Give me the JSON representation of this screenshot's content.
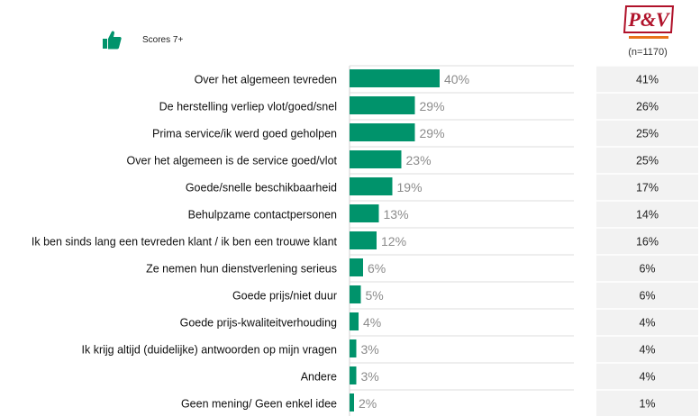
{
  "legend": {
    "label": "Scores 7+",
    "icon": "thumbs-up-icon"
  },
  "logo": {
    "text": "P&V"
  },
  "sample": {
    "label": "(n=1170)"
  },
  "colors": {
    "bar": "#00936b",
    "side_panel": "#f2f2f2",
    "logo_red": "#b0122a",
    "logo_orange": "#e8731a"
  },
  "chart_data": {
    "type": "bar",
    "orientation": "horizontal",
    "categories": [
      "Over het algemeen tevreden",
      "De herstelling verliep vlot/goed/snel",
      "Prima service/ik werd goed geholpen",
      "Over het algemeen is de service goed/vlot",
      "Goede/snelle beschikbaarheid",
      "Behulpzame contactpersonen",
      "Ik ben sinds lang een tevreden klant / ik ben een trouwe klant",
      "Ze nemen hun dienstverlening serieus",
      "Goede prijs/niet duur",
      "Goede prijs-kwaliteitverhouding",
      "Ik krijg altijd (duidelijke) antwoorden op mijn vragen",
      "Andere",
      "Geen mening/ Geen enkel idee"
    ],
    "series": [
      {
        "values": [
          40,
          29,
          29,
          23,
          19,
          13,
          12,
          6,
          5,
          4,
          3,
          3,
          2
        ],
        "labels": [
          "40%",
          "29%",
          "29%",
          "23%",
          "19%",
          "13%",
          "12%",
          "6%",
          "5%",
          "4%",
          "3%",
          "3%",
          "2%"
        ]
      }
    ],
    "comparison_column": {
      "header": "P&V",
      "sub_header": "(n=1170)",
      "values": [
        41,
        26,
        25,
        25,
        17,
        14,
        16,
        6,
        6,
        4,
        4,
        4,
        1
      ],
      "labels": [
        "41%",
        "26%",
        "25%",
        "25%",
        "17%",
        "14%",
        "16%",
        "6%",
        "6%",
        "4%",
        "4%",
        "4%",
        "1%"
      ]
    },
    "xlim": [
      0,
      100
    ],
    "grid": false
  }
}
